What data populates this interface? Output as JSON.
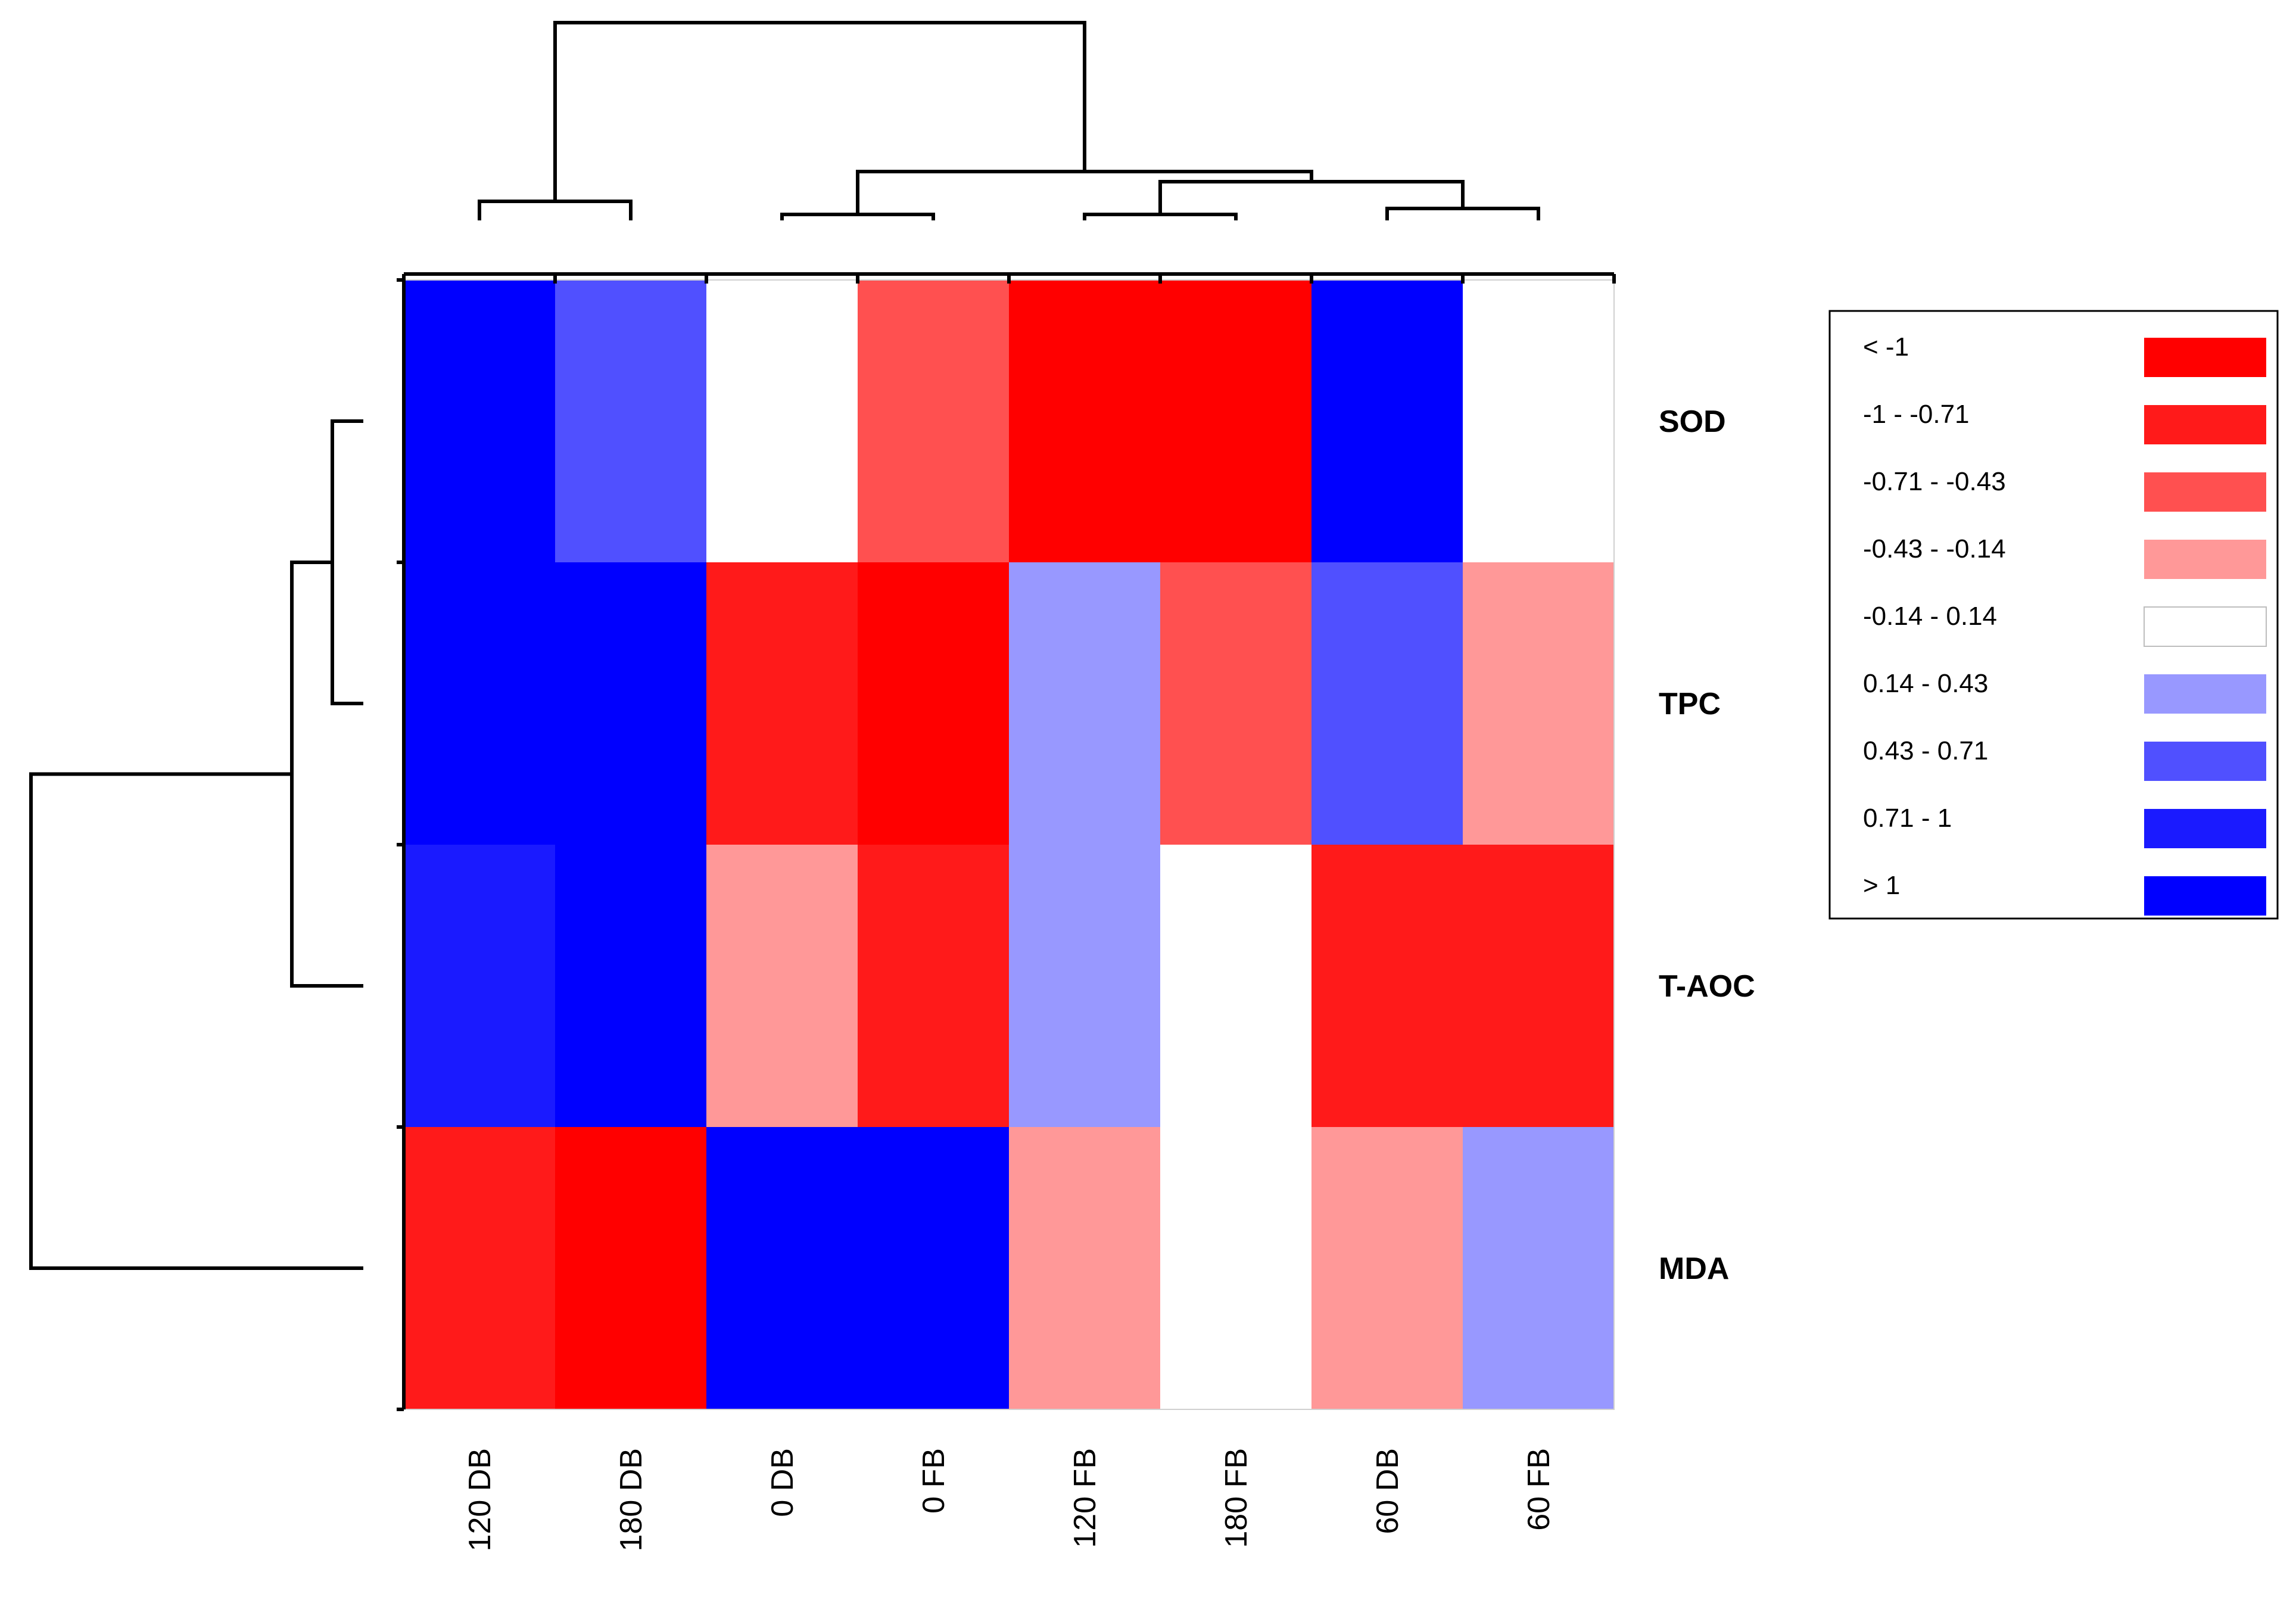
{
  "chart_data": {
    "type": "heatmap",
    "title": "",
    "columns": [
      "120 DB",
      "180 DB",
      "0 DB",
      "0 FB",
      "120 FB",
      "180 FB",
      "60 DB",
      "60 FB"
    ],
    "rows": [
      "SOD",
      "TPC",
      "T-AOC",
      "MDA"
    ],
    "bins": [
      {
        "label": "< -1",
        "color": "#ff0000"
      },
      {
        "label": "-1 - -0.71",
        "color": "#ff1a1a"
      },
      {
        "label": "-0.71 - -0.43",
        "color": "#ff5050"
      },
      {
        "label": "-0.43 - -0.14",
        "color": "#ff9898"
      },
      {
        "label": "-0.14 - 0.14",
        "color": "#ffffff"
      },
      {
        "label": "0.14 - 0.43",
        "color": "#9898ff"
      },
      {
        "label": "0.43 - 0.71",
        "color": "#5050ff"
      },
      {
        "label": "0.71 - 1",
        "color": "#1a1aff"
      },
      {
        "label": "> 1",
        "color": "#0000ff"
      }
    ],
    "cells": [
      [
        8,
        6,
        4,
        2,
        0,
        0,
        8,
        4
      ],
      [
        8,
        8,
        1,
        0,
        5,
        2,
        6,
        3
      ],
      [
        7,
        8,
        3,
        1,
        5,
        4,
        1,
        1
      ],
      [
        1,
        0,
        8,
        8,
        3,
        4,
        3,
        5
      ]
    ],
    "column_dendrogram": [
      "((120 DB, 180 DB), ((0 DB, 0 FB), ((120 FB, 180 FB), (60 DB, 60 FB))))"
    ],
    "row_dendrogram": [
      "(((SOD, TPC), T-AOC), MDA)"
    ],
    "legend_position": "right"
  }
}
